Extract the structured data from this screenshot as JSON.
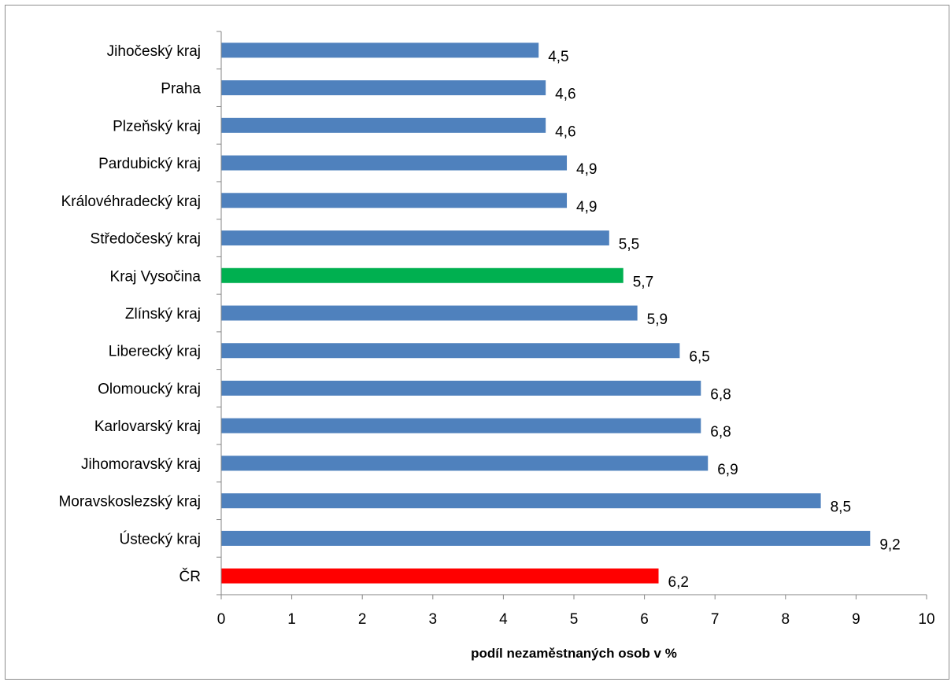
{
  "chart_data": {
    "type": "bar",
    "orientation": "horizontal",
    "title": "",
    "xlabel": "podíl nezaměstnaných osob v %",
    "ylabel": "",
    "xlim": [
      0,
      10
    ],
    "xticks": [
      "0",
      "1",
      "2",
      "3",
      "4",
      "5",
      "6",
      "7",
      "8",
      "9",
      "10"
    ],
    "grid": false,
    "legend": "none",
    "decimal_separator": ",",
    "categories": [
      "Jihočeský kraj",
      "Praha",
      "Plzeňský kraj",
      "Pardubický kraj",
      "Královéhradecký kraj",
      "Středočeský kraj",
      "Kraj Vysočina",
      "Zlínský kraj",
      "Liberecký kraj",
      "Olomoucký kraj",
      "Karlovarský kraj",
      "Jihomoravský kraj",
      "Moravskoslezský kraj",
      "Ústecký kraj",
      "ČR"
    ],
    "values": [
      4.5,
      4.6,
      4.6,
      4.9,
      4.9,
      5.5,
      5.7,
      5.9,
      6.5,
      6.8,
      6.8,
      6.9,
      8.5,
      9.2,
      6.2
    ],
    "value_labels": [
      "4,5",
      "4,6",
      "4,6",
      "4,9",
      "4,9",
      "5,5",
      "5,7",
      "5,9",
      "6,5",
      "6,8",
      "6,8",
      "6,9",
      "8,5",
      "9,2",
      "6,2"
    ],
    "bar_colors": [
      "#4f81bd",
      "#4f81bd",
      "#4f81bd",
      "#4f81bd",
      "#4f81bd",
      "#4f81bd",
      "#00b050",
      "#4f81bd",
      "#4f81bd",
      "#4f81bd",
      "#4f81bd",
      "#4f81bd",
      "#4f81bd",
      "#4f81bd",
      "#ff0000"
    ],
    "axis_color": "#868686"
  }
}
